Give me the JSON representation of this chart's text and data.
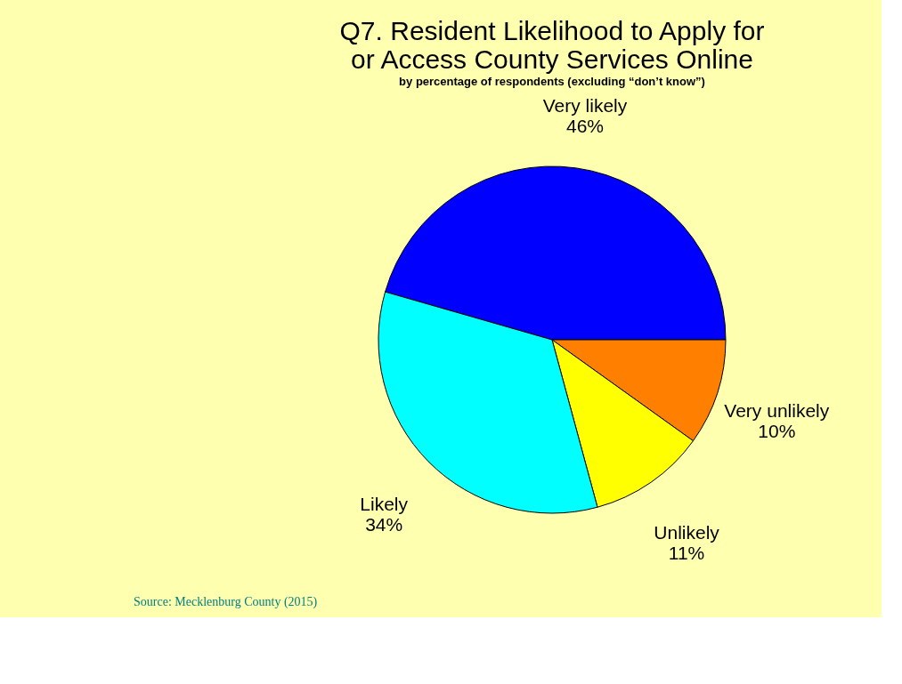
{
  "chart_data": {
    "type": "pie",
    "title": "Q7. Resident Likelihood to Apply for or Access County Services Online",
    "subtitle": "by percentage of respondents (excluding “don’t know”)",
    "categories": [
      "Very likely",
      "Very unlikely",
      "Unlikely",
      "Likely"
    ],
    "values": [
      46,
      10,
      11,
      34
    ],
    "colors": [
      "#0000ff",
      "#ff8000",
      "#ffff00",
      "#00ffff"
    ],
    "value_labels": [
      "46%",
      "10%",
      "11%",
      "34%"
    ],
    "legend": false,
    "annotations": [
      "Source:  Mecklenburg County (2015)"
    ]
  }
}
